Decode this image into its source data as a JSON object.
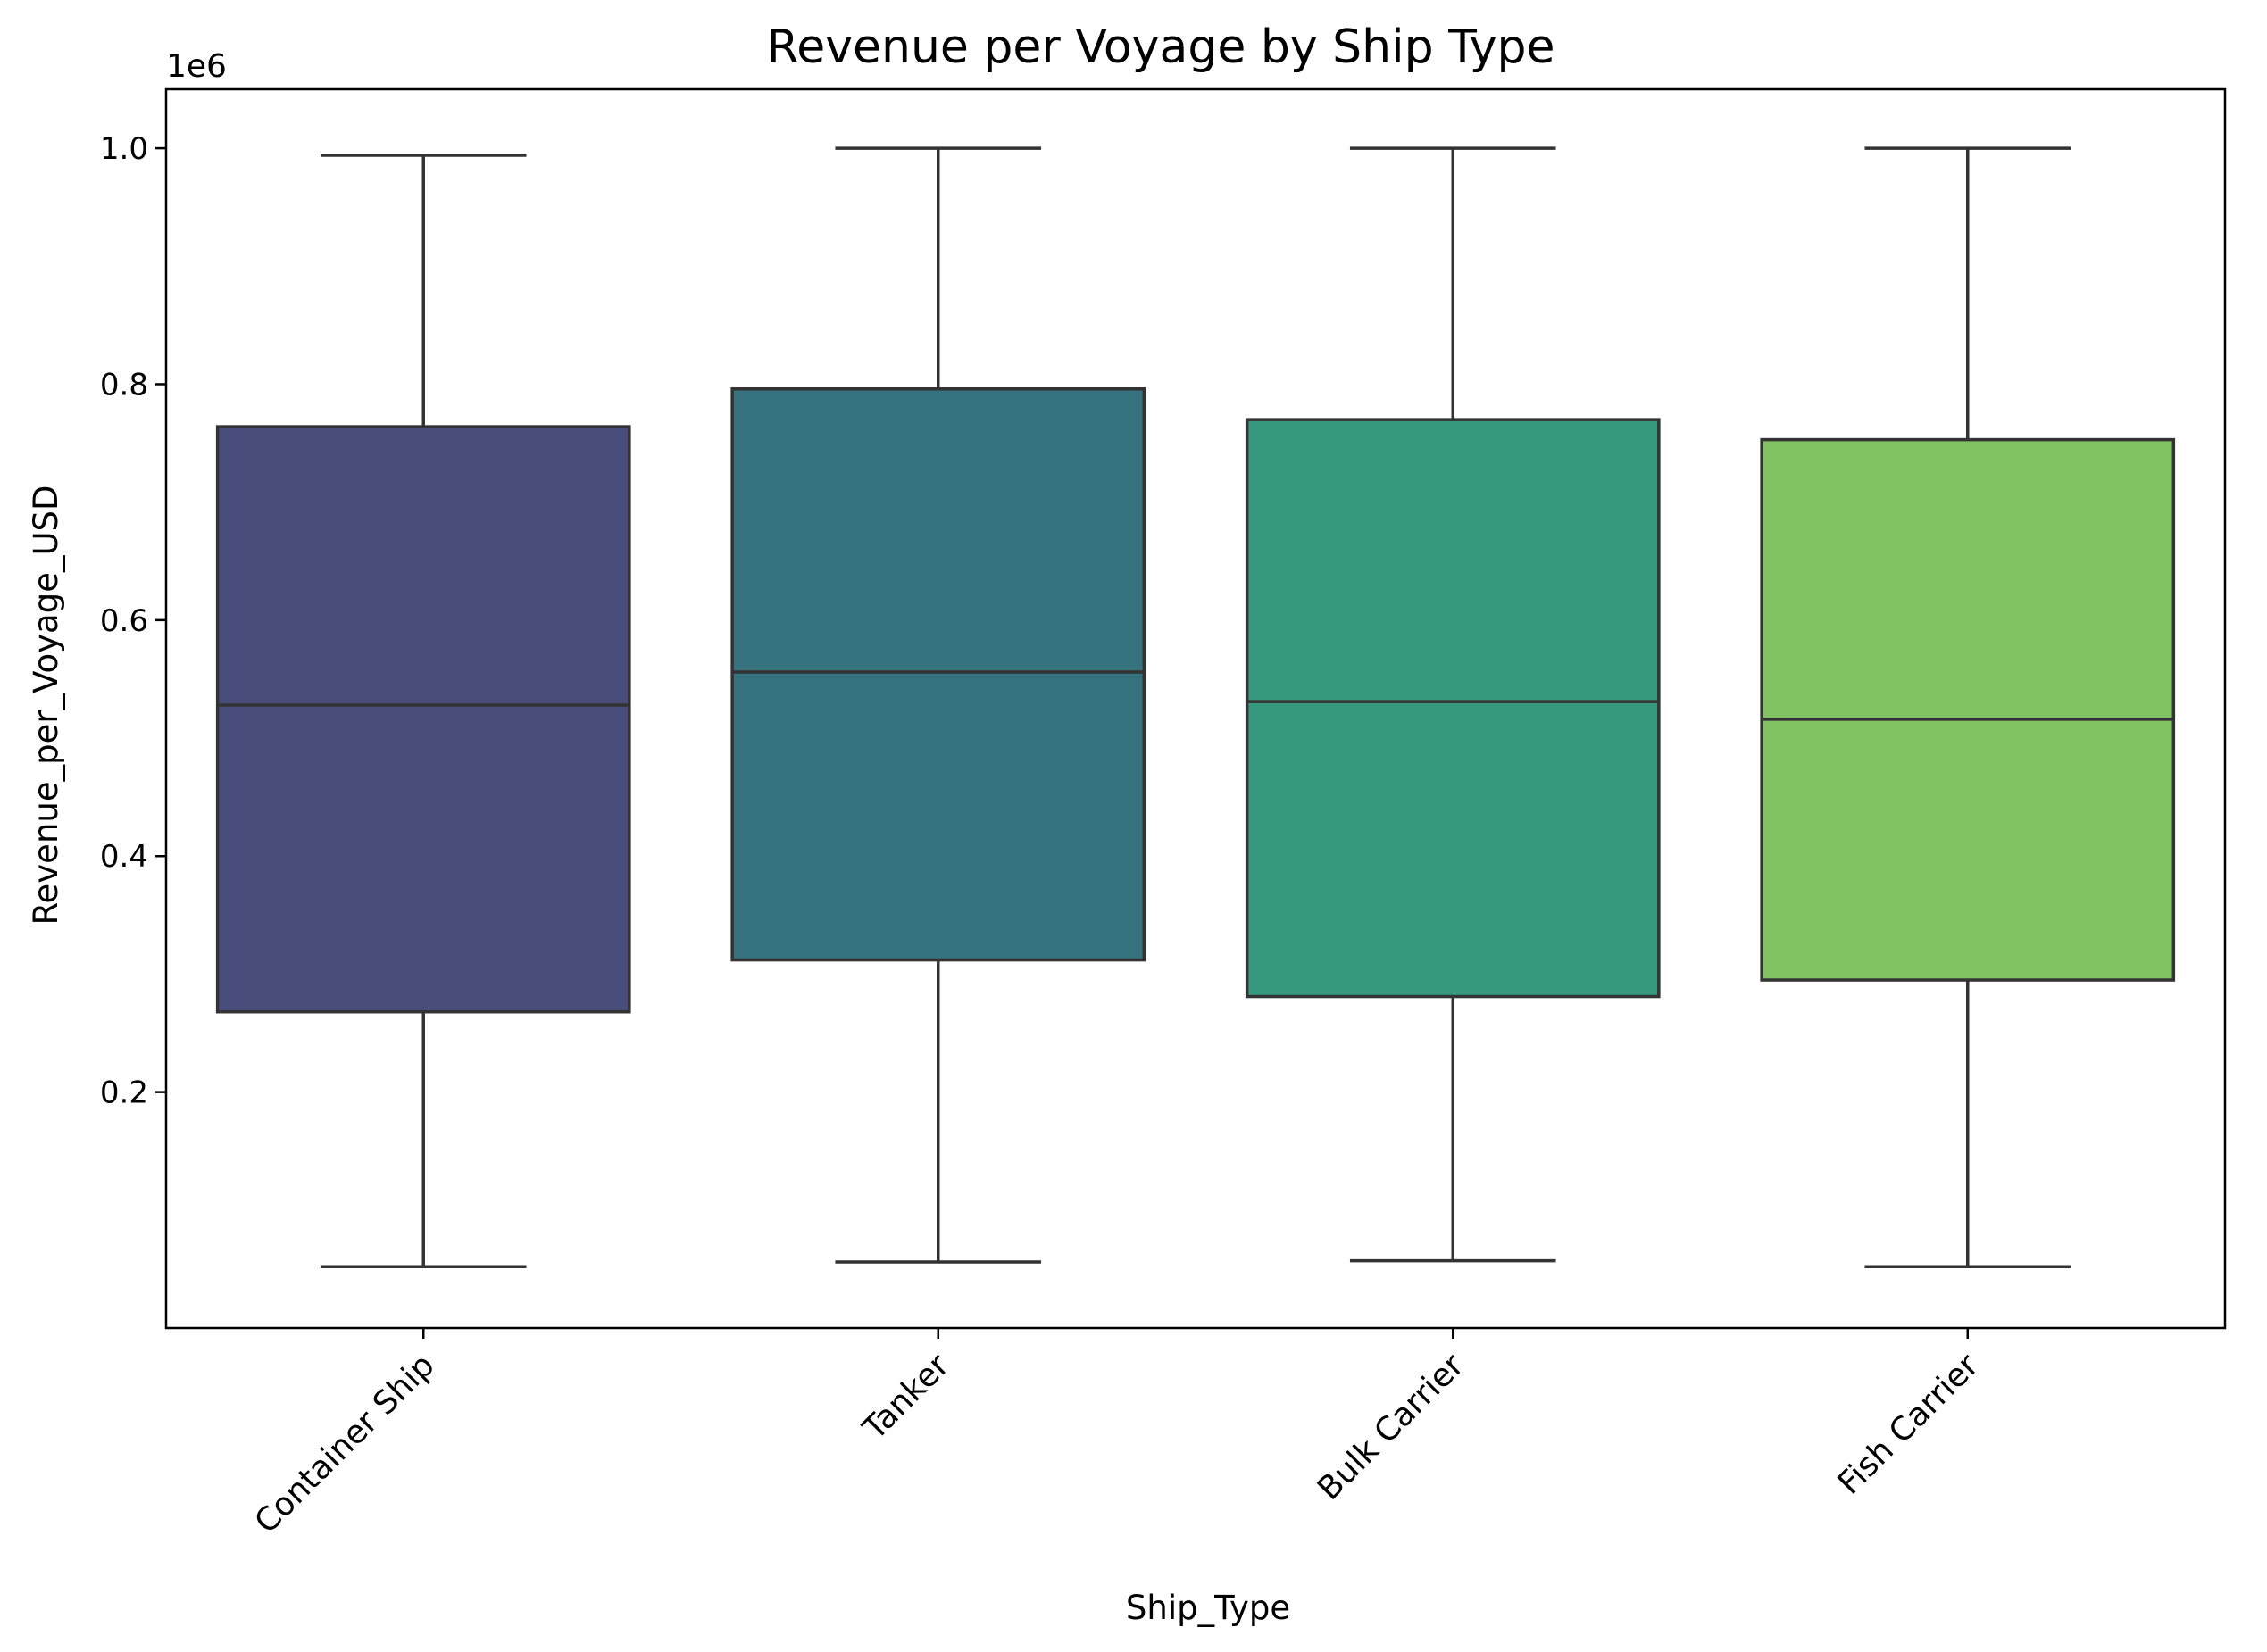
{
  "chart_data": {
    "type": "box",
    "title": "Revenue per Voyage by Ship Type",
    "xlabel": "Ship_Type",
    "ylabel": "Revenue_per_Voyage_USD",
    "y_offset_label": "1e6",
    "ylim": [
      0.0,
      1.05
    ],
    "yticks": [
      0.2,
      0.4,
      0.6,
      0.8,
      1.0
    ],
    "ytick_labels": [
      "0.2",
      "0.4",
      "0.6",
      "0.8",
      "1.0"
    ],
    "categories": [
      "Container Ship",
      "Tanker",
      "Bulk Carrier",
      "Fish Carrier"
    ],
    "boxes": [
      {
        "name": "Container Ship",
        "whislo": 0.052,
        "q1": 0.268,
        "median": 0.528,
        "q3": 0.764,
        "whishi": 0.994,
        "color": "#484d7c"
      },
      {
        "name": "Tanker",
        "whislo": 0.056,
        "q1": 0.312,
        "median": 0.556,
        "q3": 0.796,
        "whishi": 1.0,
        "color": "#37727f"
      },
      {
        "name": "Bulk Carrier",
        "whislo": 0.057,
        "q1": 0.281,
        "median": 0.531,
        "q3": 0.77,
        "whishi": 1.0,
        "color": "#36987d"
      },
      {
        "name": "Fish Carrier",
        "whislo": 0.052,
        "q1": 0.295,
        "median": 0.516,
        "q3": 0.753,
        "whishi": 1.0,
        "color": "#81c262"
      }
    ],
    "grid": false,
    "line_color": "#333333"
  }
}
